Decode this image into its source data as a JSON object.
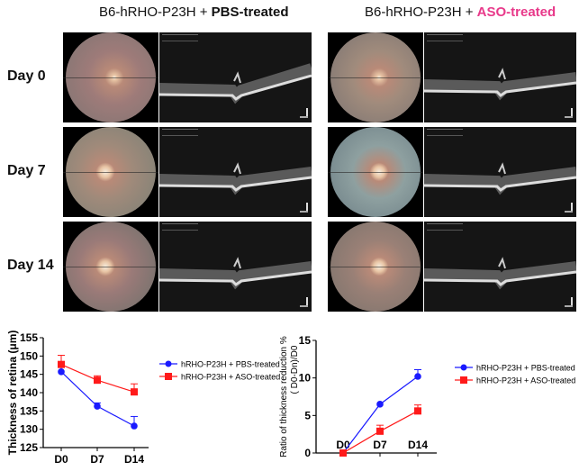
{
  "headers": {
    "left_prefix": "B6-hRHO-P23H + ",
    "left_emph": "PBS-treated",
    "right_prefix": "B6-hRHO-P23H + ",
    "right_emph": "ASO-treated",
    "right_emph_color": "#e8398a"
  },
  "rows": [
    {
      "label": "Day 0"
    },
    {
      "label": "Day 7"
    },
    {
      "label": "Day 14"
    }
  ],
  "chart_data": [
    {
      "type": "line",
      "title": "",
      "xlabel": "",
      "ylabel": "Thickness of retina (μm)",
      "categories": [
        "D0",
        "D7",
        "D14"
      ],
      "ylim": [
        125,
        155
      ],
      "yticks": [
        125,
        130,
        135,
        140,
        145,
        150,
        155
      ],
      "legend_position": "right",
      "series": [
        {
          "name": "hRHO-P23H + PBS-treated",
          "color": "#1a1aff",
          "marker": "circle",
          "values": [
            145.7,
            136.3,
            130.9
          ],
          "errors": [
            1.2,
            0.9,
            2.6
          ]
        },
        {
          "name": "hRHO-P23H + ASO-treated",
          "color": "#ff1a1a",
          "marker": "square",
          "values": [
            147.7,
            143.4,
            140.2
          ],
          "errors": [
            2.5,
            1.2,
            2.2
          ]
        }
      ]
    },
    {
      "type": "line",
      "title": "",
      "xlabel": "",
      "ylabel": "Ratio of thickness reduction %",
      "ylabel2": "( D0-Dn)/D0",
      "categories": [
        "D0",
        "D7",
        "D14"
      ],
      "ylim": [
        0,
        15
      ],
      "yticks": [
        0,
        5,
        10,
        15
      ],
      "legend_position": "right",
      "series": [
        {
          "name": "hRHO-P23H + PBS-treated",
          "color": "#1a1aff",
          "marker": "circle",
          "values": [
            0,
            6.5,
            10.2
          ],
          "errors": [
            0,
            0,
            0.9
          ]
        },
        {
          "name": "hRHO-P23H + ASO-treated",
          "color": "#ff1a1a",
          "marker": "square",
          "values": [
            0,
            2.9,
            5.6
          ],
          "errors": [
            0,
            0.8,
            0.8
          ]
        }
      ]
    }
  ]
}
